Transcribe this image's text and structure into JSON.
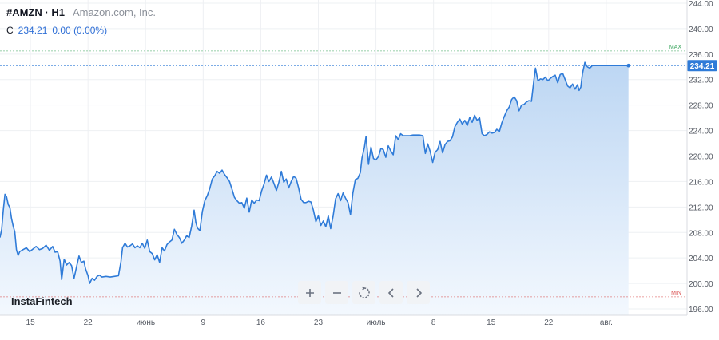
{
  "header": {
    "symbol": "#AMZN · H1",
    "company": "Amazon.com, Inc.",
    "ohlc_label": "C",
    "close_value": "234.21",
    "change": "0.00 (0.00%)"
  },
  "watermark": "InstaFintech",
  "toolbar": [
    "zoom-in",
    "zoom-out",
    "reset",
    "scroll-left",
    "scroll-right"
  ],
  "markers": {
    "max_label": "MAX",
    "min_label": "MIN",
    "max_value": 236.5,
    "min_value": 197.9
  },
  "last_price_label": "234.21",
  "colors": {
    "line": "#2f7bd8",
    "fill_top": "#bcd6f3",
    "fill_bottom": "#f3f8fe",
    "max": "#3aa55d",
    "min": "#d94c4c",
    "price": "#2f7bd8",
    "grid": "#eef0f3",
    "text": "#555a63"
  },
  "chart_data": {
    "type": "area",
    "title": "",
    "ylim": [
      195,
      244.5
    ],
    "y_ticks": [
      "244.00",
      "240.00",
      "236.00",
      "232.00",
      "228.00",
      "224.00",
      "220.00",
      "216.00",
      "212.00",
      "208.00",
      "204.00",
      "200.00",
      "196.00"
    ],
    "x_tick_labels": [
      "15",
      "22",
      "июнь",
      "9",
      "16",
      "23",
      "июль",
      "8",
      "15",
      "22",
      "авг."
    ],
    "x_ticks": [
      0.3,
      7.3,
      14.3,
      21.3,
      28.3,
      35.3,
      42.3,
      49.3,
      56.3,
      63.3,
      70.3
    ],
    "x_range": [
      -3.4,
      77.4
    ],
    "series": [
      {
        "values": [
          [
            -3.4,
            207.2
          ],
          [
            -3.2,
            208.5
          ],
          [
            -3.0,
            211.5
          ],
          [
            -2.8,
            214.0
          ],
          [
            -2.6,
            213.6
          ],
          [
            -2.4,
            212.4
          ],
          [
            -2.2,
            211.9
          ],
          [
            -2.0,
            210.2
          ],
          [
            -1.8,
            209.0
          ],
          [
            -1.6,
            208.1
          ],
          [
            -1.4,
            205.3
          ],
          [
            -1.2,
            204.4
          ],
          [
            -1.0,
            205.0
          ],
          [
            -0.6,
            205.3
          ],
          [
            -0.2,
            205.6
          ],
          [
            0.2,
            205.0
          ],
          [
            0.6,
            205.4
          ],
          [
            1.0,
            205.8
          ],
          [
            1.4,
            205.3
          ],
          [
            1.8,
            205.5
          ],
          [
            2.2,
            206.0
          ],
          [
            2.6,
            205.2
          ],
          [
            3.0,
            205.8
          ],
          [
            3.3,
            204.9
          ],
          [
            3.6,
            205.0
          ],
          [
            3.9,
            203.5
          ],
          [
            4.1,
            200.6
          ],
          [
            4.4,
            203.8
          ],
          [
            4.7,
            202.9
          ],
          [
            5.0,
            203.3
          ],
          [
            5.3,
            202.8
          ],
          [
            5.6,
            200.8
          ],
          [
            5.9,
            202.6
          ],
          [
            6.2,
            204.3
          ],
          [
            6.5,
            203.3
          ],
          [
            6.8,
            203.5
          ],
          [
            7.0,
            202.3
          ],
          [
            7.3,
            201.2
          ],
          [
            7.5,
            200.0
          ],
          [
            7.8,
            200.8
          ],
          [
            8.1,
            200.5
          ],
          [
            8.4,
            201.1
          ],
          [
            8.7,
            201.3
          ],
          [
            9.0,
            201.0
          ],
          [
            9.5,
            201.1
          ],
          [
            10.0,
            201.0
          ],
          [
            10.5,
            201.1
          ],
          [
            11.0,
            201.2
          ],
          [
            11.3,
            203.4
          ],
          [
            11.5,
            205.6
          ],
          [
            11.8,
            206.3
          ],
          [
            12.1,
            205.7
          ],
          [
            12.4,
            205.9
          ],
          [
            12.7,
            206.2
          ],
          [
            13.0,
            205.6
          ],
          [
            13.3,
            205.9
          ],
          [
            13.6,
            205.6
          ],
          [
            13.9,
            206.3
          ],
          [
            14.2,
            205.5
          ],
          [
            14.5,
            206.8
          ],
          [
            14.8,
            205.0
          ],
          [
            15.1,
            204.7
          ],
          [
            15.4,
            203.7
          ],
          [
            15.7,
            204.5
          ],
          [
            16.0,
            203.3
          ],
          [
            16.3,
            205.6
          ],
          [
            16.6,
            205.1
          ],
          [
            16.9,
            206.1
          ],
          [
            17.2,
            206.5
          ],
          [
            17.5,
            206.8
          ],
          [
            17.8,
            208.5
          ],
          [
            18.1,
            207.7
          ],
          [
            18.4,
            207.2
          ],
          [
            18.7,
            206.3
          ],
          [
            19.0,
            206.8
          ],
          [
            19.3,
            207.5
          ],
          [
            19.6,
            207.2
          ],
          [
            19.9,
            209.0
          ],
          [
            20.2,
            211.5
          ],
          [
            20.4,
            209.6
          ],
          [
            20.6,
            208.7
          ],
          [
            20.9,
            208.3
          ],
          [
            21.2,
            211.3
          ],
          [
            21.5,
            213.0
          ],
          [
            21.8,
            213.8
          ],
          [
            22.1,
            214.9
          ],
          [
            22.4,
            216.4
          ],
          [
            22.7,
            216.9
          ],
          [
            23.0,
            217.6
          ],
          [
            23.3,
            217.3
          ],
          [
            23.6,
            217.8
          ],
          [
            23.9,
            217.1
          ],
          [
            24.2,
            216.6
          ],
          [
            24.5,
            216.0
          ],
          [
            24.8,
            214.8
          ],
          [
            25.1,
            213.5
          ],
          [
            25.4,
            213.0
          ],
          [
            25.7,
            212.6
          ],
          [
            26.0,
            212.7
          ],
          [
            26.3,
            211.8
          ],
          [
            26.6,
            213.4
          ],
          [
            26.9,
            211.2
          ],
          [
            27.2,
            213.1
          ],
          [
            27.5,
            212.6
          ],
          [
            27.8,
            213.1
          ],
          [
            28.1,
            213.0
          ],
          [
            28.4,
            214.5
          ],
          [
            28.7,
            215.6
          ],
          [
            29.0,
            217.0
          ],
          [
            29.3,
            216.0
          ],
          [
            29.6,
            216.7
          ],
          [
            29.9,
            215.7
          ],
          [
            30.2,
            214.6
          ],
          [
            30.5,
            215.9
          ],
          [
            30.8,
            217.6
          ],
          [
            31.1,
            215.9
          ],
          [
            31.4,
            216.4
          ],
          [
            31.7,
            215.0
          ],
          [
            32.0,
            216.0
          ],
          [
            32.3,
            216.8
          ],
          [
            32.6,
            216.5
          ],
          [
            32.9,
            215.0
          ],
          [
            33.2,
            213.2
          ],
          [
            33.5,
            212.7
          ],
          [
            33.8,
            212.7
          ],
          [
            34.1,
            212.9
          ],
          [
            34.4,
            212.8
          ],
          [
            34.7,
            211.5
          ],
          [
            35.0,
            209.7
          ],
          [
            35.3,
            210.6
          ],
          [
            35.6,
            209.1
          ],
          [
            35.9,
            209.8
          ],
          [
            36.2,
            208.9
          ],
          [
            36.5,
            210.6
          ],
          [
            36.8,
            208.6
          ],
          [
            37.1,
            210.6
          ],
          [
            37.4,
            213.3
          ],
          [
            37.7,
            214.1
          ],
          [
            38.0,
            213.0
          ],
          [
            38.3,
            214.2
          ],
          [
            38.6,
            213.4
          ],
          [
            38.9,
            212.7
          ],
          [
            39.2,
            210.8
          ],
          [
            39.5,
            214.2
          ],
          [
            39.8,
            216.3
          ],
          [
            40.1,
            216.5
          ],
          [
            40.4,
            217.4
          ],
          [
            40.6,
            219.7
          ],
          [
            40.9,
            221.4
          ],
          [
            41.1,
            223.1
          ],
          [
            41.4,
            218.7
          ],
          [
            41.7,
            221.4
          ],
          [
            42.0,
            219.6
          ],
          [
            42.3,
            219.4
          ],
          [
            42.6,
            219.9
          ],
          [
            42.9,
            221.2
          ],
          [
            43.2,
            221.0
          ],
          [
            43.5,
            219.8
          ],
          [
            43.8,
            221.6
          ],
          [
            44.1,
            220.8
          ],
          [
            44.4,
            220.2
          ],
          [
            44.7,
            223.2
          ],
          [
            45.0,
            222.6
          ],
          [
            45.3,
            223.5
          ],
          [
            45.6,
            223.2
          ],
          [
            46.0,
            223.2
          ],
          [
            46.4,
            223.2
          ],
          [
            46.8,
            223.3
          ],
          [
            47.2,
            223.3
          ],
          [
            47.6,
            223.3
          ],
          [
            48.0,
            223.2
          ],
          [
            48.3,
            220.4
          ],
          [
            48.6,
            221.9
          ],
          [
            48.9,
            220.7
          ],
          [
            49.2,
            219.0
          ],
          [
            49.5,
            220.6
          ],
          [
            49.8,
            221.0
          ],
          [
            50.1,
            222.3
          ],
          [
            50.4,
            220.5
          ],
          [
            50.7,
            221.8
          ],
          [
            51.0,
            222.3
          ],
          [
            51.3,
            222.4
          ],
          [
            51.6,
            223.0
          ],
          [
            51.9,
            224.6
          ],
          [
            52.2,
            225.3
          ],
          [
            52.5,
            225.8
          ],
          [
            52.8,
            225.0
          ],
          [
            53.1,
            225.6
          ],
          [
            53.4,
            224.8
          ],
          [
            53.7,
            226.1
          ],
          [
            54.0,
            225.3
          ],
          [
            54.3,
            226.4
          ],
          [
            54.6,
            225.6
          ],
          [
            54.9,
            226.0
          ],
          [
            55.2,
            223.5
          ],
          [
            55.5,
            223.2
          ],
          [
            55.8,
            223.4
          ],
          [
            56.1,
            223.8
          ],
          [
            56.4,
            223.6
          ],
          [
            56.7,
            223.7
          ],
          [
            57.0,
            224.2
          ],
          [
            57.3,
            223.8
          ],
          [
            57.6,
            225.2
          ],
          [
            57.9,
            226.2
          ],
          [
            58.2,
            227.1
          ],
          [
            58.5,
            227.7
          ],
          [
            58.8,
            228.9
          ],
          [
            59.1,
            229.3
          ],
          [
            59.4,
            228.7
          ],
          [
            59.7,
            227.1
          ],
          [
            60.0,
            228.0
          ],
          [
            60.3,
            228.1
          ],
          [
            60.6,
            228.5
          ],
          [
            60.9,
            228.7
          ],
          [
            61.2,
            228.6
          ],
          [
            61.5,
            231.9
          ],
          [
            61.7,
            233.8
          ],
          [
            62.0,
            231.8
          ],
          [
            62.3,
            232.1
          ],
          [
            62.6,
            232.0
          ],
          [
            62.9,
            232.4
          ],
          [
            63.2,
            231.8
          ],
          [
            63.5,
            232.2
          ],
          [
            63.8,
            232.5
          ],
          [
            64.1,
            232.7
          ],
          [
            64.4,
            231.5
          ],
          [
            64.7,
            232.8
          ],
          [
            65.0,
            233.0
          ],
          [
            65.3,
            232.0
          ],
          [
            65.6,
            231.0
          ],
          [
            65.9,
            230.7
          ],
          [
            66.2,
            231.3
          ],
          [
            66.5,
            230.5
          ],
          [
            66.8,
            231.2
          ],
          [
            67.0,
            230.3
          ],
          [
            67.2,
            230.8
          ],
          [
            67.4,
            232.9
          ],
          [
            67.7,
            234.7
          ],
          [
            68.0,
            234.0
          ],
          [
            68.3,
            233.8
          ],
          [
            68.6,
            234.2
          ],
          [
            69.0,
            234.2
          ],
          [
            70.0,
            234.2
          ],
          [
            71.0,
            234.2
          ],
          [
            72.0,
            234.2
          ],
          [
            73.0,
            234.2
          ]
        ]
      }
    ]
  }
}
